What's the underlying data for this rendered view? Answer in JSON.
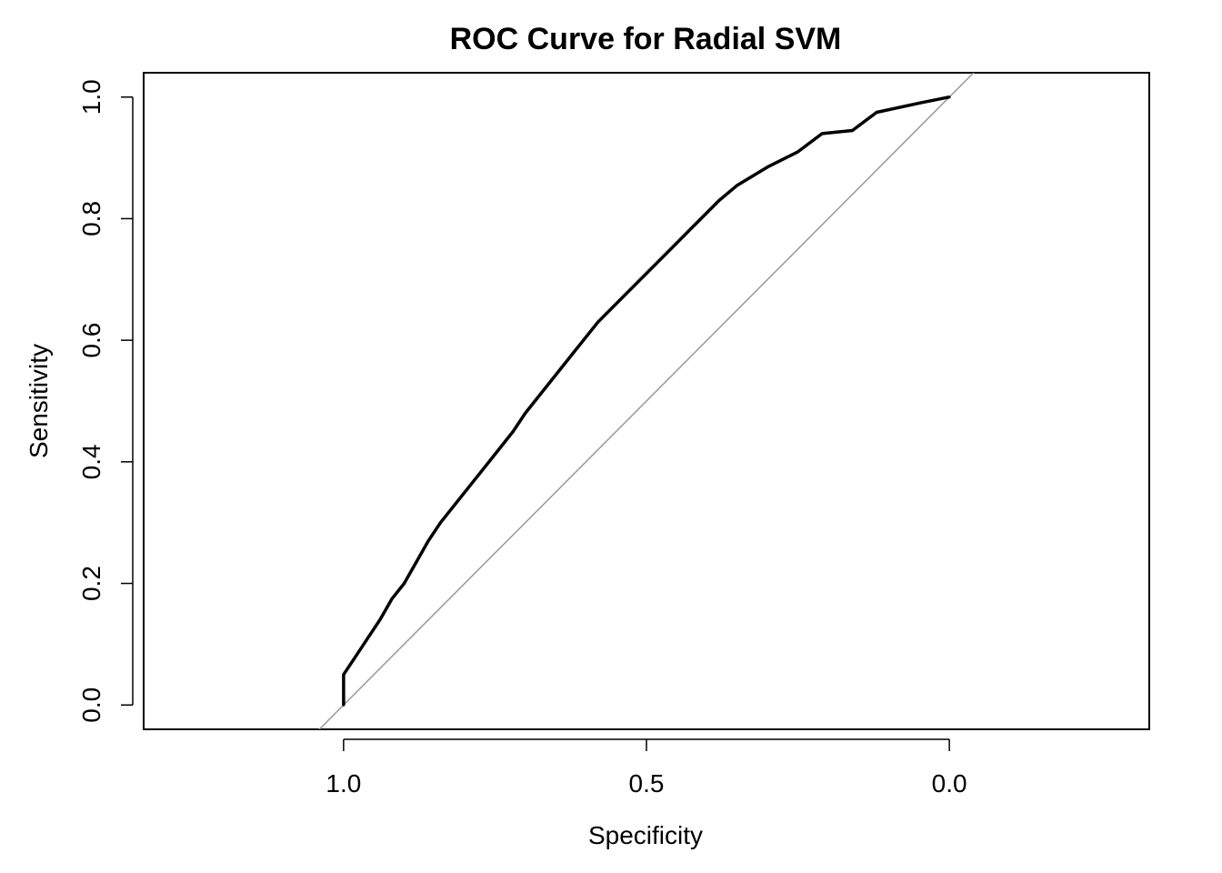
{
  "chart_data": {
    "type": "line",
    "title": "ROC Curve for Radial SVM",
    "xlabel": "Specificity",
    "ylabel": "Sensitivity",
    "x_reversed": true,
    "xlim": [
      1.33,
      -0.33
    ],
    "ylim": [
      -0.04,
      1.04
    ],
    "xticks": [
      "1.0",
      "0.5",
      "0.0"
    ],
    "yticks": [
      "0.0",
      "0.2",
      "0.4",
      "0.6",
      "0.8",
      "1.0"
    ],
    "grid": false,
    "legend": "none",
    "colors": {
      "curve": "#000000",
      "reference": "#999999",
      "frame": "#000000"
    },
    "series": [
      {
        "values": [
          [
            1.0,
            0.0
          ],
          [
            1.0,
            0.05
          ],
          [
            0.98,
            0.08
          ],
          [
            0.96,
            0.11
          ],
          [
            0.94,
            0.14
          ],
          [
            0.92,
            0.175
          ],
          [
            0.9,
            0.2
          ],
          [
            0.88,
            0.235
          ],
          [
            0.86,
            0.27
          ],
          [
            0.84,
            0.3
          ],
          [
            0.8,
            0.35
          ],
          [
            0.76,
            0.4
          ],
          [
            0.72,
            0.45
          ],
          [
            0.7,
            0.48
          ],
          [
            0.66,
            0.53
          ],
          [
            0.62,
            0.58
          ],
          [
            0.58,
            0.63
          ],
          [
            0.54,
            0.67
          ],
          [
            0.5,
            0.71
          ],
          [
            0.46,
            0.75
          ],
          [
            0.42,
            0.79
          ],
          [
            0.38,
            0.83
          ],
          [
            0.35,
            0.855
          ],
          [
            0.3,
            0.885
          ],
          [
            0.25,
            0.91
          ],
          [
            0.21,
            0.94
          ],
          [
            0.16,
            0.945
          ],
          [
            0.12,
            0.975
          ],
          [
            0.05,
            0.99
          ],
          [
            0.0,
            1.0
          ]
        ]
      }
    ],
    "reference_line": {
      "x": [
        1.0,
        0.0
      ],
      "y": [
        0.0,
        1.0
      ]
    }
  }
}
